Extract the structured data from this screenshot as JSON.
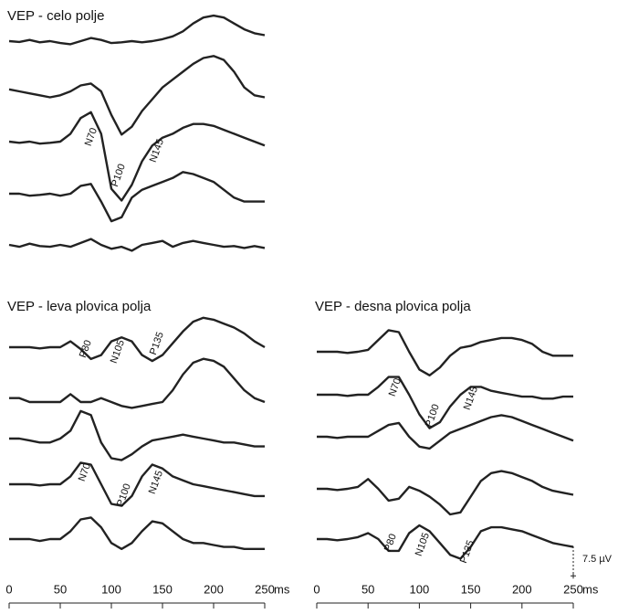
{
  "chart_data": [
    {
      "type": "line",
      "title": "VEP - celo polje",
      "x": [
        0,
        10,
        20,
        30,
        40,
        50,
        60,
        70,
        80,
        90,
        100,
        110,
        120,
        130,
        140,
        150,
        160,
        170,
        180,
        190,
        200,
        210,
        220,
        230,
        240,
        250
      ],
      "xlim": [
        0,
        250
      ],
      "series": [
        {
          "color": "#222222",
          "values": [
            0,
            0.2,
            -0.3,
            0.3,
            0,
            0.5,
            0.8,
            0,
            -0.8,
            -0.3,
            0.5,
            0.3,
            0,
            0.3,
            0,
            -0.5,
            -1.2,
            -2.5,
            -4.5,
            -6,
            -6.5,
            -6,
            -4.5,
            -3,
            -2,
            -1.5
          ]
        },
        {
          "color": "#222222",
          "values": [
            -0.5,
            0,
            0.5,
            1,
            1.5,
            1,
            0,
            -1.5,
            -2,
            0,
            6,
            11,
            9,
            5,
            2,
            -1,
            -3,
            -5,
            -7,
            -8.5,
            -9,
            -8,
            -5,
            -1,
            1,
            1.5
          ]
        },
        {
          "color": "#222222",
          "values": [
            0,
            0.3,
            0,
            0.5,
            0.3,
            0,
            -2,
            -6,
            -7.5,
            -2,
            12,
            15,
            11,
            5,
            1,
            -1,
            -2,
            -3.5,
            -4.5,
            -4.5,
            -4,
            -3,
            -2,
            -1,
            0,
            1
          ],
          "annotations": [
            "N70",
            "P100",
            "N145"
          ]
        },
        {
          "color": "#222222",
          "values": [
            0,
            0,
            0.5,
            0.3,
            0,
            0.5,
            0,
            -2,
            -2.5,
            2,
            7,
            6,
            1,
            -1,
            -2,
            -3,
            -4,
            -5.5,
            -5,
            -4,
            -3,
            -1,
            1,
            2,
            2,
            2
          ]
        },
        {
          "color": "#222222",
          "values": [
            0,
            0.5,
            -0.3,
            0.3,
            0.5,
            0,
            0.5,
            -0.5,
            -1.5,
            0,
            1,
            0.5,
            1.5,
            0,
            -0.5,
            -1,
            0.5,
            -0.5,
            -1,
            -0.5,
            0,
            0.5,
            0.3,
            0.8,
            0.3,
            0.8
          ]
        }
      ]
    },
    {
      "type": "line",
      "title": "VEP - leva plovica polja",
      "x": [
        0,
        10,
        20,
        30,
        40,
        50,
        60,
        70,
        80,
        90,
        100,
        110,
        120,
        130,
        140,
        150,
        160,
        170,
        180,
        190,
        200,
        210,
        220,
        230,
        240,
        250
      ],
      "xlim": [
        0,
        250
      ],
      "xticks": [
        0,
        50,
        100,
        150,
        200,
        250
      ],
      "xlabel": "ms",
      "series": [
        {
          "color": "#222222",
          "values": [
            0,
            0,
            0,
            0.3,
            0,
            0,
            -1.5,
            0.5,
            3,
            2,
            -1.5,
            -2.5,
            -1.5,
            2,
            3.5,
            2,
            -1,
            -4,
            -6.5,
            -7.5,
            -7,
            -6,
            -5,
            -3.5,
            -1.5,
            0
          ],
          "annotations": [
            "P80",
            "N105",
            "P135"
          ]
        },
        {
          "color": "#222222",
          "values": [
            -1,
            -1,
            0,
            0,
            0,
            0,
            -2,
            0,
            0,
            -1,
            0,
            1,
            1.5,
            1,
            0.5,
            0,
            -3,
            -7,
            -10,
            -11,
            -10.5,
            -9,
            -6,
            -3,
            -1,
            0
          ]
        },
        {
          "color": "#222222",
          "values": [
            0,
            0,
            0.5,
            1,
            1,
            0,
            -2,
            -7,
            -6,
            1,
            5,
            5.5,
            4,
            2,
            0.5,
            0,
            -0.5,
            -1,
            -0.5,
            0,
            0.5,
            1,
            1,
            1.5,
            2,
            2
          ]
        },
        {
          "color": "#222222",
          "values": [
            0,
            0,
            0,
            0.3,
            0,
            0,
            -2,
            -5.5,
            -5,
            0,
            5,
            5.5,
            3,
            -2,
            -5,
            -4,
            -2,
            -1,
            0,
            0.5,
            1,
            1.5,
            2,
            2.5,
            3,
            3
          ],
          "annotations": [
            "N70",
            "P100",
            "N145"
          ]
        },
        {
          "color": "#222222",
          "values": [
            0,
            0,
            0,
            0.5,
            0,
            0,
            -2,
            -5,
            -5.5,
            -3,
            1,
            2.5,
            1,
            -2,
            -4.5,
            -4,
            -2,
            0,
            1,
            1,
            1.5,
            2,
            2,
            2.5,
            2.5,
            2.5
          ]
        }
      ]
    },
    {
      "type": "line",
      "title": "VEP - desna plovica polja",
      "x": [
        0,
        10,
        20,
        30,
        40,
        50,
        60,
        70,
        80,
        90,
        100,
        110,
        120,
        130,
        140,
        150,
        160,
        170,
        180,
        190,
        200,
        210,
        220,
        230,
        240,
        250
      ],
      "xlim": [
        0,
        250
      ],
      "xticks": [
        0,
        50,
        100,
        150,
        200,
        250
      ],
      "xlabel": "ms",
      "scale_bar": {
        "value": 7.5,
        "label": "7.5 µV"
      },
      "series": [
        {
          "color": "#222222",
          "values": [
            0,
            0,
            0,
            0.3,
            0,
            -0.5,
            -3,
            -5.5,
            -5,
            0,
            4.5,
            6,
            4,
            1,
            -1,
            -1.5,
            -2.5,
            -3,
            -3.5,
            -3.5,
            -3,
            -2,
            0,
            1,
            1,
            1
          ]
        },
        {
          "color": "#222222",
          "values": [
            0,
            0,
            0,
            0.3,
            0,
            0,
            -2,
            -4.5,
            -4.5,
            0,
            5,
            8.5,
            7,
            3,
            0,
            -2,
            -2,
            -1,
            -0.5,
            0,
            0.5,
            0.5,
            1,
            1,
            0.5,
            0.5
          ],
          "annotations": [
            "N70",
            "P100",
            "N145"
          ]
        },
        {
          "color": "#222222",
          "values": [
            0,
            0,
            0.3,
            0,
            0,
            0,
            -1.5,
            -3,
            -3.5,
            0,
            2.5,
            3,
            1,
            -1,
            -2,
            -3,
            -4,
            -5,
            -5.5,
            -5,
            -4,
            -3,
            -2,
            -1,
            0,
            1
          ]
        },
        {
          "color": "#222222",
          "values": [
            0,
            0,
            0.3,
            0,
            -0.5,
            -2.5,
            0,
            3,
            2.5,
            -0.5,
            0.5,
            2,
            4,
            6.5,
            6,
            2,
            -2,
            -4,
            -4.5,
            -4,
            -3,
            -2,
            -0.5,
            0.5,
            1,
            1.5
          ]
        },
        {
          "color": "#222222",
          "values": [
            0,
            0,
            0.3,
            0,
            -0.5,
            -1.5,
            0,
            3,
            3,
            -1.5,
            -3.5,
            -2,
            1,
            4,
            5,
            2,
            -2,
            -3,
            -3,
            -2.5,
            -2,
            -1,
            0,
            1,
            1.5,
            2
          ],
          "annotations": [
            "P80",
            "N105",
            "P135"
          ]
        }
      ]
    }
  ]
}
